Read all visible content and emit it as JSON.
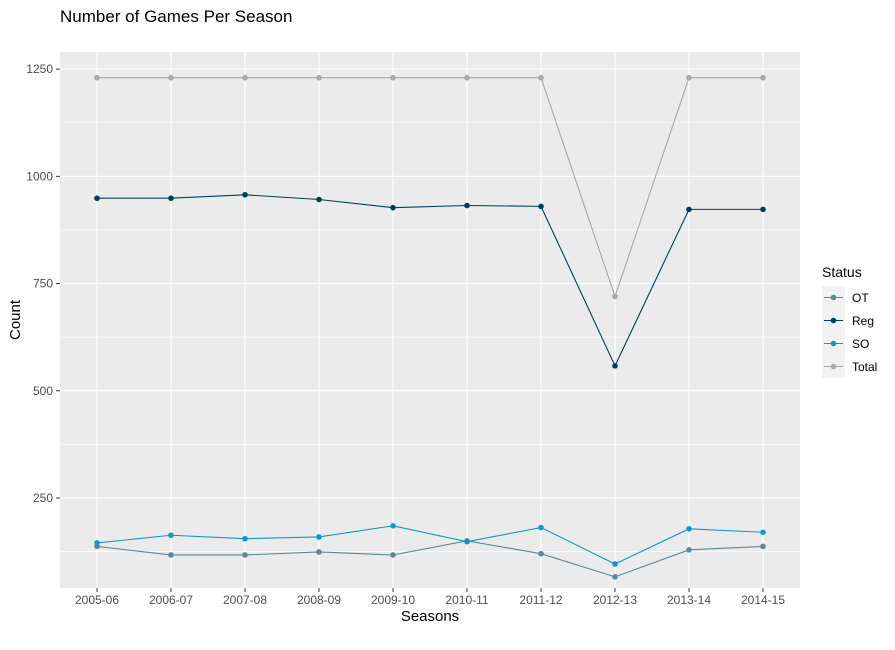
{
  "chart_data": {
    "type": "line",
    "title": "Number of Games Per Season",
    "xlabel": "Seasons",
    "ylabel": "Count",
    "ylim": [
      40,
      1290
    ],
    "yticks": [
      250,
      500,
      750,
      1000,
      1250
    ],
    "grid": true,
    "legend": {
      "title": "Status",
      "position": "right"
    },
    "categories": [
      "2005-06",
      "2006-07",
      "2007-08",
      "2008-09",
      "2009-10",
      "2010-11",
      "2011-12",
      "2012-13",
      "2013-14",
      "2014-15"
    ],
    "series": [
      {
        "name": "OT",
        "color": "#5f8799",
        "values": [
          137,
          117,
          117,
          124,
          117,
          150,
          120,
          66,
          129,
          137
        ]
      },
      {
        "name": "Reg",
        "color": "#003f5c",
        "values": [
          949,
          949,
          957,
          946,
          927,
          932,
          930,
          558,
          923,
          923
        ]
      },
      {
        "name": "SO",
        "color": "#1199c8",
        "values": [
          145,
          163,
          155,
          159,
          185,
          148,
          181,
          96,
          178,
          170
        ]
      },
      {
        "name": "Total",
        "color": "#a9a9a9",
        "values": [
          1230,
          1230,
          1230,
          1230,
          1230,
          1230,
          1230,
          720,
          1230,
          1230
        ]
      }
    ]
  }
}
